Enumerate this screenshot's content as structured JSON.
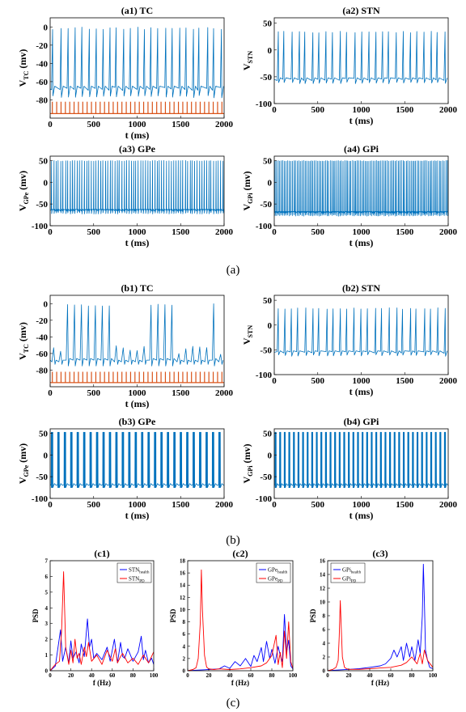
{
  "captions": {
    "a": "(a)",
    "b": "(b)",
    "c": "(c)"
  },
  "colors": {
    "trace": "#0072bd",
    "stim": "#d95319",
    "health": "#0000ff",
    "pd": "#ff0000"
  },
  "chart_data": [
    {
      "id": "a1",
      "type": "line",
      "title": "(a1) TC",
      "ylabel_main": "V",
      "ylabel_sub": "TC",
      "ylabel_unit": " (mv)",
      "xlabel": "t (ms)",
      "xlim": [
        0,
        2000
      ],
      "ylim": [
        -100,
        10
      ],
      "yticks": [
        0,
        -20,
        -40,
        -60,
        -80
      ],
      "xticks": [
        0,
        500,
        1000,
        1500,
        2000
      ],
      "series": [
        {
          "kind": "spikes",
          "baseline": -68,
          "peak": 0,
          "trough": -75,
          "rate_per_s": 12.5,
          "color": "trace"
        },
        {
          "kind": "stim",
          "base": -95,
          "top": -82,
          "period_ms": 50,
          "color": "stim"
        }
      ]
    },
    {
      "id": "a2",
      "type": "line",
      "title": "(a2) STN",
      "ylabel_main": "V",
      "ylabel_sub": "STN",
      "ylabel_unit": "",
      "xlabel": "t (ms)",
      "xlim": [
        0,
        2000
      ],
      "ylim": [
        -100,
        60
      ],
      "yticks": [
        50,
        0,
        -50,
        -100
      ],
      "xticks": [
        0,
        500,
        1000,
        1500,
        2000
      ],
      "series": [
        {
          "kind": "spikes",
          "baseline": -55,
          "peak": 35,
          "trough": -60,
          "rate_per_s": 12.5,
          "color": "trace"
        }
      ]
    },
    {
      "id": "a3",
      "type": "line",
      "title": "(a3) GPe",
      "ylabel_main": "V",
      "ylabel_sub": "GPe",
      "ylabel_unit": " (mv)",
      "xlabel": "t (ms)",
      "xlim": [
        0,
        2000
      ],
      "ylim": [
        -100,
        60
      ],
      "yticks": [
        50,
        0,
        -50,
        -100
      ],
      "xticks": [
        0,
        500,
        1000,
        1500,
        2000
      ],
      "series": [
        {
          "kind": "dense",
          "baseline": -65,
          "peak": 50,
          "trough": -70,
          "rate_per_s": 37,
          "color": "trace"
        }
      ]
    },
    {
      "id": "a4",
      "type": "line",
      "title": "(a4) GPi",
      "ylabel_main": "V",
      "ylabel_sub": "GPi",
      "ylabel_unit": " (mv)",
      "xlabel": "t (ms)",
      "xlim": [
        0,
        2000
      ],
      "ylim": [
        -100,
        60
      ],
      "yticks": [
        50,
        0,
        -50,
        -100
      ],
      "xticks": [
        0,
        500,
        1000,
        1500,
        2000
      ],
      "series": [
        {
          "kind": "dense",
          "baseline": -70,
          "peak": 50,
          "trough": -75,
          "rate_per_s": 55,
          "color": "trace"
        }
      ]
    },
    {
      "id": "b1",
      "type": "line",
      "title": "(b1) TC",
      "ylabel_main": "V",
      "ylabel_sub": "TC",
      "ylabel_unit": " (mv)",
      "xlabel": "t (ms)",
      "xlim": [
        0,
        2000
      ],
      "ylim": [
        -100,
        10
      ],
      "yticks": [
        0,
        -20,
        -40,
        -60,
        -80
      ],
      "xticks": [
        0,
        500,
        1000,
        1500,
        2000
      ],
      "series": [
        {
          "kind": "tc_pd",
          "baseline": -68,
          "peak": 0,
          "trough": -75,
          "color": "trace"
        },
        {
          "kind": "stim",
          "base": -95,
          "top": -82,
          "period_ms": 50,
          "color": "stim"
        }
      ]
    },
    {
      "id": "b2",
      "type": "line",
      "title": "(b2) STN",
      "ylabel_main": "V",
      "ylabel_sub": "STN",
      "ylabel_unit": "",
      "xlabel": "t (ms)",
      "xlim": [
        0,
        2000
      ],
      "ylim": [
        -100,
        60
      ],
      "yticks": [
        50,
        0,
        -50,
        -100
      ],
      "xticks": [
        0,
        500,
        1000,
        1500,
        2000
      ],
      "series": [
        {
          "kind": "spikes",
          "baseline": -55,
          "peak": 35,
          "trough": -60,
          "rate_per_s": 12.5,
          "color": "trace"
        }
      ]
    },
    {
      "id": "b3",
      "type": "line",
      "title": "(b3) GPe",
      "ylabel_main": "V",
      "ylabel_sub": "GPe",
      "ylabel_unit": " (mv)",
      "xlabel": "t (ms)",
      "xlim": [
        0,
        2000
      ],
      "ylim": [
        -100,
        60
      ],
      "yticks": [
        50,
        0,
        -50,
        -100
      ],
      "xticks": [
        0,
        500,
        1000,
        1500,
        2000
      ],
      "series": [
        {
          "kind": "bursts",
          "baseline": -70,
          "peak": 52,
          "trough": -75,
          "burst_count": 27,
          "color": "trace"
        }
      ]
    },
    {
      "id": "b4",
      "type": "line",
      "title": "(b4) GPi",
      "ylabel_main": "V",
      "ylabel_sub": "GPi",
      "ylabel_unit": " (mv)",
      "xlabel": "t (ms)",
      "xlim": [
        0,
        2000
      ],
      "ylim": [
        -100,
        60
      ],
      "yticks": [
        50,
        0,
        -50,
        -100
      ],
      "xticks": [
        0,
        500,
        1000,
        1500,
        2000
      ],
      "series": [
        {
          "kind": "bursts",
          "baseline": -70,
          "peak": 52,
          "trough": -75,
          "burst_count": 38,
          "color": "trace"
        }
      ]
    },
    {
      "id": "c1",
      "type": "line",
      "title": "(c1)",
      "ylabel": "PSD",
      "xlabel": "f (Hz)",
      "xlim": [
        0,
        100
      ],
      "ylim": [
        0,
        7
      ],
      "yticks": [
        0,
        1,
        2,
        3,
        4,
        5,
        6,
        7
      ],
      "xticks": [
        0,
        20,
        40,
        60,
        80,
        100
      ],
      "legend": [
        {
          "main": "STN",
          "sub": "health",
          "color": "health"
        },
        {
          "main": "STN",
          "sub": "PD",
          "color": "pd"
        }
      ],
      "legend_position": "top-right",
      "series": [
        {
          "name": "STN health",
          "color": "health",
          "x": [
            0,
            5,
            10,
            12,
            15,
            18,
            20,
            22,
            25,
            28,
            30,
            33,
            36,
            38,
            40,
            42,
            45,
            50,
            55,
            58,
            60,
            62,
            65,
            68,
            70,
            72,
            75,
            80,
            85,
            88,
            90,
            92,
            95,
            98,
            100
          ],
          "y": [
            0,
            0.3,
            2.6,
            0.6,
            1.5,
            0.5,
            1.9,
            0.8,
            1.2,
            0.5,
            1.7,
            0.9,
            3.3,
            1.5,
            2.0,
            0.8,
            1.1,
            0.7,
            1.5,
            0.6,
            1.3,
            2.0,
            0.5,
            1.8,
            0.9,
            0.8,
            1.4,
            0.6,
            1.2,
            2.2,
            0.7,
            1.3,
            0.5,
            0.8,
            0.4
          ]
        },
        {
          "name": "STN PD",
          "color": "pd",
          "x": [
            0,
            5,
            9,
            11,
            13,
            15,
            18,
            20,
            22,
            24,
            26,
            28,
            30,
            33,
            35,
            37,
            40,
            45,
            50,
            55,
            60,
            63,
            65,
            68,
            70,
            75,
            80,
            85,
            90,
            95,
            100
          ],
          "y": [
            0,
            0.4,
            0.6,
            2.5,
            6.3,
            1.5,
            0.4,
            1.3,
            0.5,
            2.0,
            0.8,
            1.1,
            0.4,
            1.5,
            0.9,
            1.8,
            0.6,
            1.0,
            0.4,
            1.3,
            0.6,
            1.4,
            0.5,
            0.9,
            1.1,
            0.5,
            0.8,
            0.4,
            1.0,
            0.5,
            1.2
          ]
        }
      ]
    },
    {
      "id": "c2",
      "type": "line",
      "title": "(c2)",
      "ylabel": "PSD",
      "xlabel": "f (Hz)",
      "xlim": [
        0,
        100
      ],
      "ylim": [
        0,
        18
      ],
      "yticks": [
        0,
        2,
        4,
        6,
        8,
        10,
        12,
        14,
        16,
        18
      ],
      "xticks": [
        0,
        20,
        40,
        60,
        80,
        100
      ],
      "legend": [
        {
          "main": "GPe",
          "sub": "health",
          "color": "health"
        },
        {
          "main": "GPe",
          "sub": "PD",
          "color": "pd"
        }
      ],
      "legend_position": "top-right",
      "series": [
        {
          "name": "GPe health",
          "color": "health",
          "x": [
            0,
            10,
            20,
            30,
            35,
            40,
            45,
            50,
            55,
            60,
            63,
            66,
            70,
            72,
            75,
            78,
            80,
            83,
            86,
            88,
            90,
            92,
            94,
            96,
            98,
            100
          ],
          "y": [
            0,
            0.1,
            0.2,
            0.3,
            0.8,
            0.4,
            1.5,
            0.8,
            2.0,
            0.7,
            2.5,
            1.5,
            3.8,
            1.5,
            4.8,
            2.0,
            3.5,
            1.2,
            4.0,
            2.5,
            1.5,
            9.2,
            3.0,
            5.0,
            0.8,
            0.3
          ]
        },
        {
          "name": "GPe PD",
          "color": "pd",
          "x": [
            0,
            5,
            8,
            10,
            12,
            13,
            14,
            16,
            18,
            20,
            25,
            30,
            40,
            50,
            60,
            70,
            75,
            80,
            84,
            86,
            88,
            90,
            92,
            94,
            96,
            98,
            100
          ],
          "y": [
            0,
            0.2,
            0.5,
            2.0,
            8.0,
            16.5,
            10.0,
            2.5,
            0.6,
            0.3,
            0.2,
            0.3,
            0.2,
            0.3,
            0.5,
            0.8,
            1.3,
            2.5,
            5.8,
            1.0,
            3.0,
            0.5,
            6.5,
            2.0,
            8.0,
            1.5,
            0.4
          ]
        }
      ]
    },
    {
      "id": "c3",
      "type": "line",
      "title": "(c3)",
      "ylabel": "PSD",
      "xlabel": "f (Hz)",
      "xlim": [
        0,
        100
      ],
      "ylim": [
        0,
        16
      ],
      "yticks": [
        0,
        2,
        4,
        6,
        8,
        10,
        12,
        14,
        16
      ],
      "xticks": [
        0,
        20,
        40,
        60,
        80,
        100
      ],
      "legend": [
        {
          "main": "GPi",
          "sub": "health",
          "color": "health"
        },
        {
          "main": "GPi",
          "sub": "PD",
          "color": "pd"
        }
      ],
      "legend_position": "top-left",
      "series": [
        {
          "name": "GPi health",
          "color": "health",
          "x": [
            0,
            10,
            20,
            30,
            40,
            50,
            55,
            60,
            63,
            66,
            70,
            72,
            75,
            78,
            80,
            83,
            86,
            88,
            90,
            91,
            92,
            93,
            95,
            97,
            100
          ],
          "y": [
            0,
            0.1,
            0.2,
            0.3,
            0.5,
            0.7,
            1.0,
            1.8,
            3.0,
            2.0,
            3.5,
            1.5,
            4.0,
            2.0,
            3.5,
            1.5,
            4.5,
            2.5,
            8.0,
            15.5,
            10.0,
            3.0,
            1.5,
            0.5,
            0.3
          ]
        },
        {
          "name": "GPi PD",
          "color": "pd",
          "x": [
            0,
            5,
            8,
            10,
            11,
            12,
            13,
            14,
            16,
            18,
            20,
            30,
            40,
            50,
            60,
            70,
            75,
            80,
            85,
            88,
            90,
            92,
            95,
            100
          ],
          "y": [
            0,
            0.2,
            0.5,
            1.5,
            5.0,
            10.2,
            6.0,
            2.0,
            0.5,
            0.3,
            0.2,
            0.2,
            0.3,
            0.4,
            0.5,
            0.8,
            1.2,
            2.0,
            1.0,
            2.5,
            1.0,
            3.0,
            1.5,
            0.5
          ]
        }
      ]
    }
  ]
}
